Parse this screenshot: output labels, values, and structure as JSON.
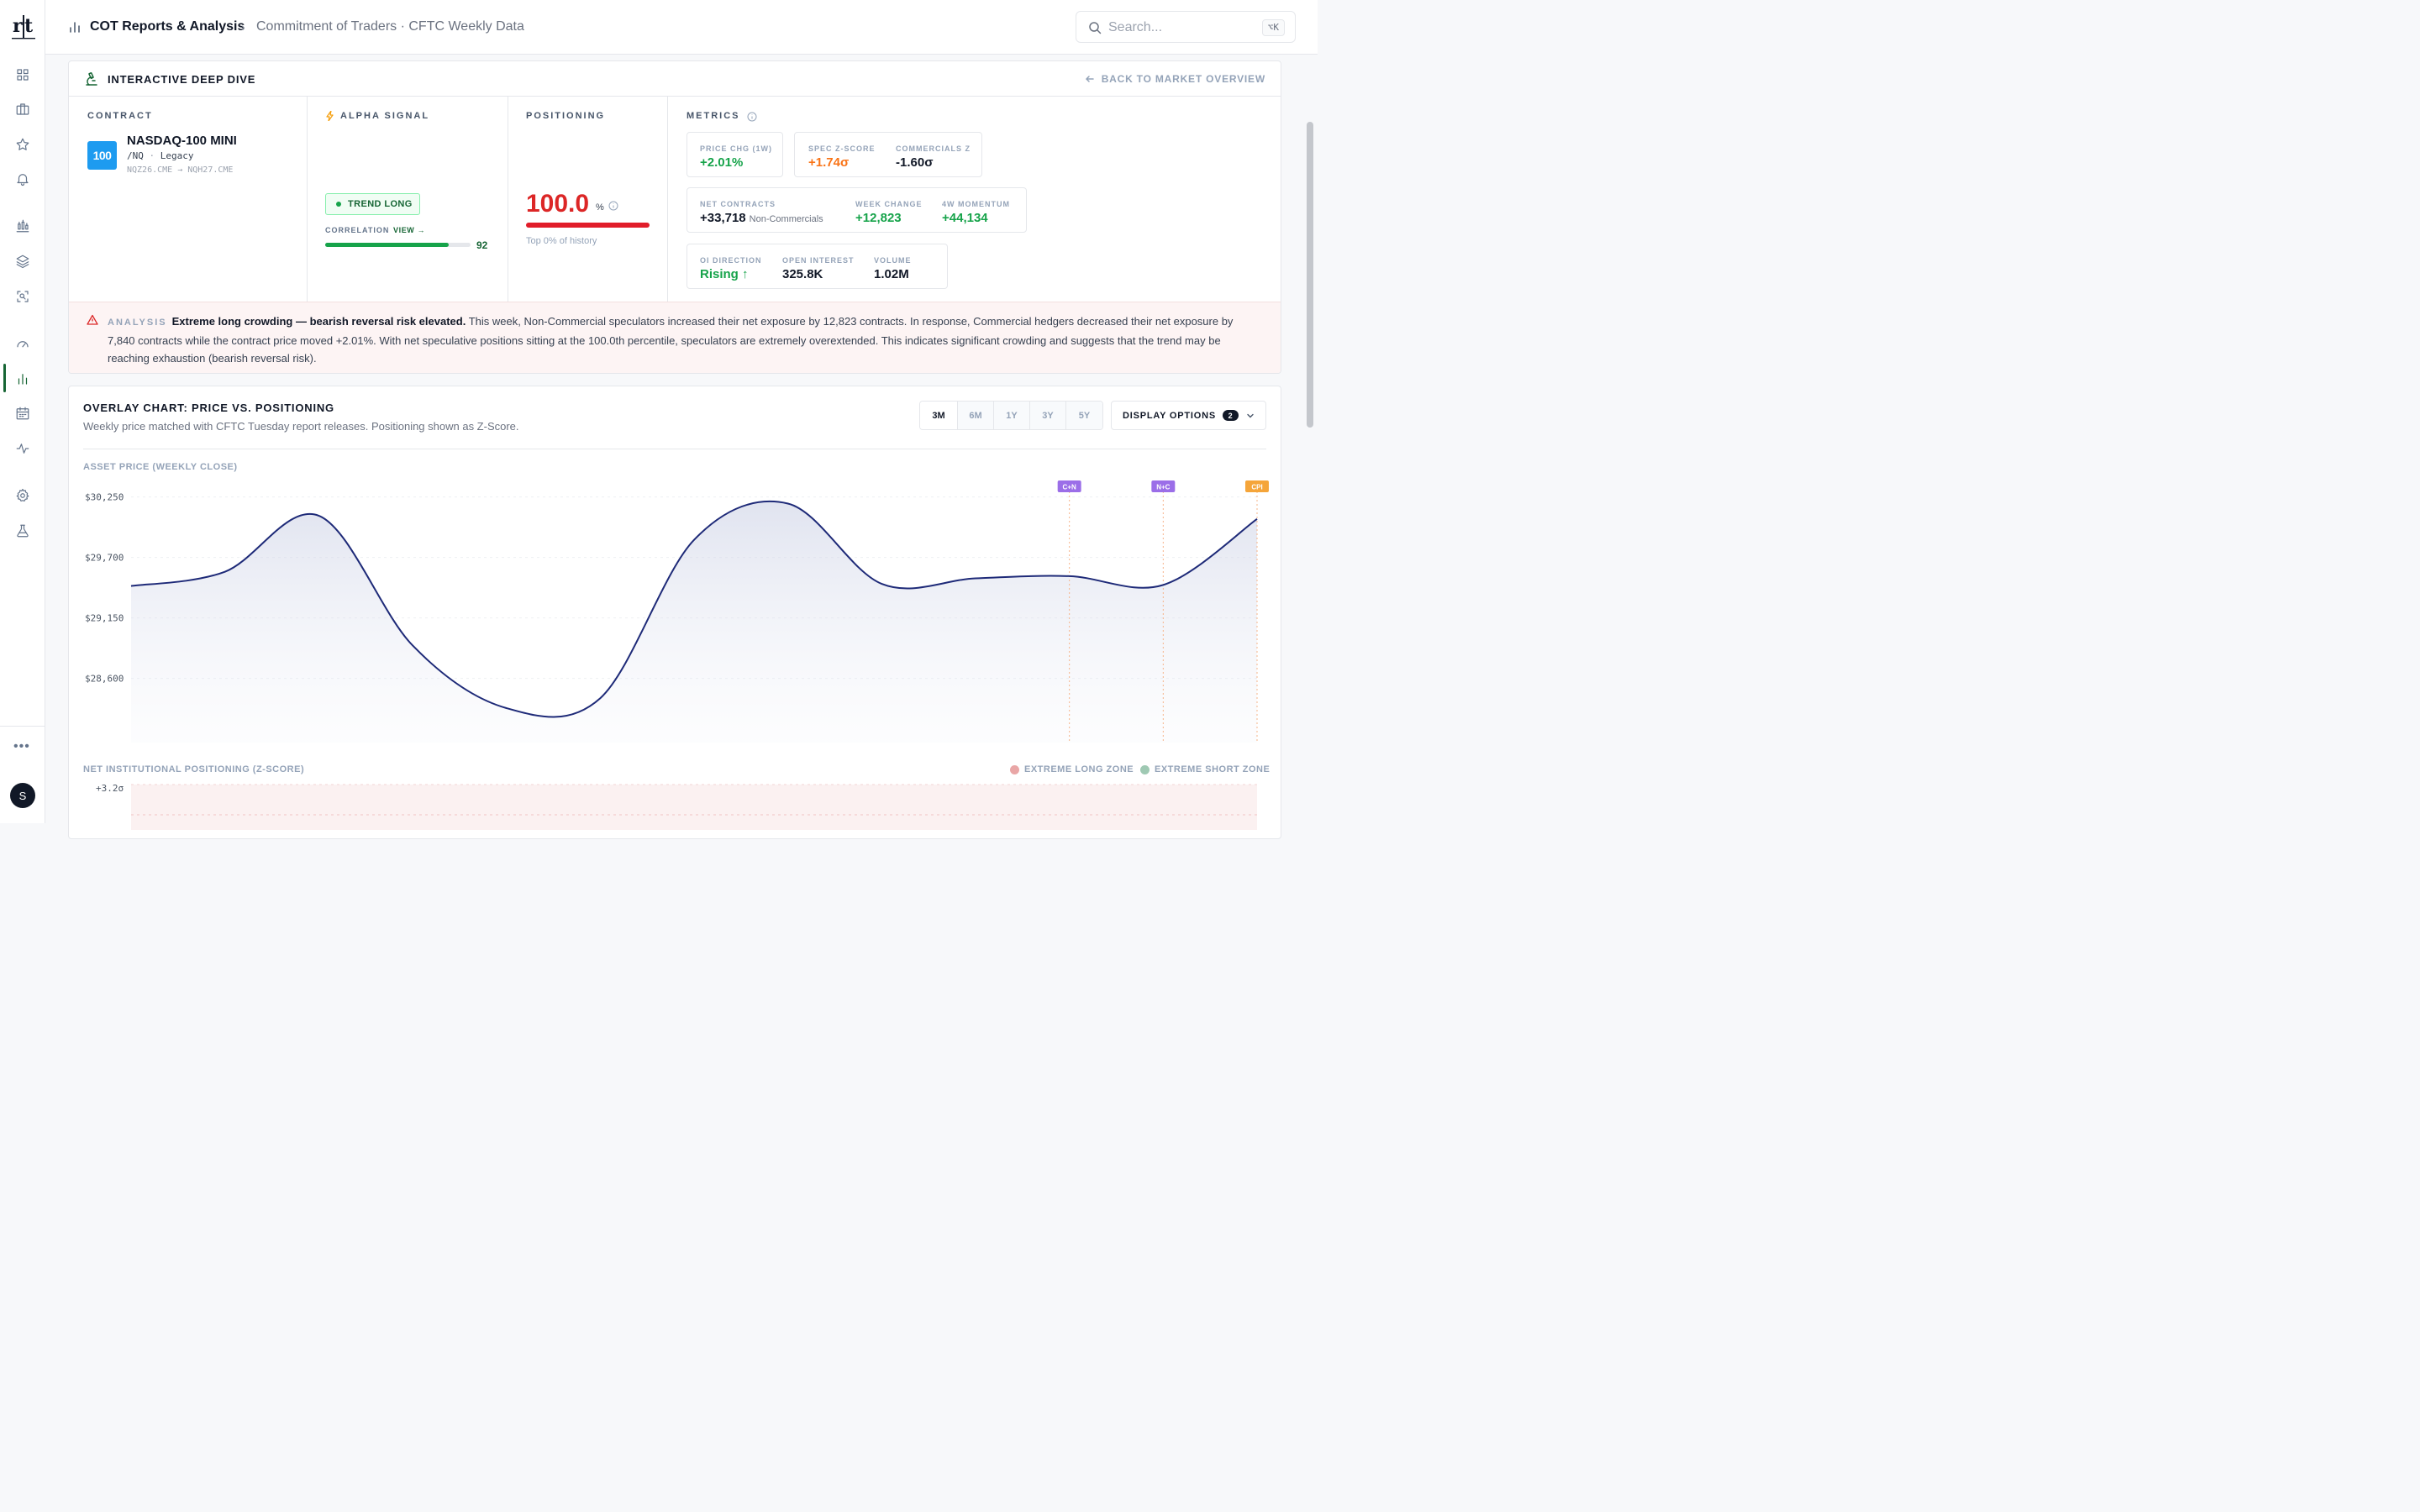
{
  "topbar": {
    "title": "COT Reports & Analysis",
    "subtitle": "Commitment of Traders · CFTC Weekly Data",
    "search_placeholder": "Search...",
    "shortcut": "⌥K"
  },
  "sidebar": {
    "logo_text": "r|t",
    "icons": [
      "dashboard-icon",
      "briefcase-icon",
      "star-icon",
      "bell-icon",
      "candles-icon",
      "layers-icon",
      "scan-icon",
      "gauge-icon",
      "bar-chart-icon",
      "calendar-icon",
      "pulse-icon",
      "settings-icon",
      "flask-icon"
    ],
    "active": "bar-chart-icon",
    "more": "•••",
    "avatar": "S"
  },
  "deep_dive": {
    "title": "INTERACTIVE DEEP DIVE",
    "back": "BACK TO MARKET OVERVIEW",
    "contract": {
      "label": "CONTRACT",
      "logo": "100",
      "name": "NASDAQ-100 MINI",
      "symbol": "/NQ",
      "type": "Legacy",
      "codes": "NQZ26.CME → NQH27.CME"
    },
    "alpha": {
      "label": "ALPHA SIGNAL",
      "signal": "TREND LONG",
      "correlation_label": "CORRELATION",
      "view_label": "VIEW →",
      "correlation_value": "92",
      "correlation_fraction": 0.92
    },
    "positioning": {
      "label": "POSITIONING",
      "value": "100.0",
      "unit": "%",
      "note": "Top 0% of history",
      "fraction": 1.0
    },
    "metrics": {
      "label": "METRICS",
      "price_chg_label": "PRICE CHG (1W)",
      "price_chg": "+2.01%",
      "spec_z_label": "SPEC Z-SCORE",
      "spec_z": "+1.74σ",
      "comm_z_label": "COMMERCIALS Z",
      "comm_z": "-1.60σ",
      "net_label": "NET CONTRACTS",
      "net": "+33,718",
      "net_sub": "Non-Commercials",
      "week_change_label": "WEEK CHANGE",
      "week_change": "+12,823",
      "momentum_label": "4W MOMENTUM",
      "momentum": "+44,134",
      "oi_dir_label": "OI DIRECTION",
      "oi_dir": "Rising ↑",
      "oi_label": "OPEN INTEREST",
      "oi": "325.8K",
      "volume_label": "VOLUME",
      "volume": "1.02M"
    },
    "analysis": {
      "label": "ANALYSIS",
      "headline": "Extreme long crowding — bearish reversal risk elevated.",
      "body": "This week, Non-Commercial speculators increased their net exposure by 12,823 contracts. In response, Commercial hedgers decreased their net exposure by 7,840 contracts while the contract price moved +2.01%. With net speculative positions sitting at the 100.0th percentile, speculators are extremely overextended. This indicates significant crowding and suggests that the trend may be reaching exhaustion (bearish reversal risk)."
    }
  },
  "overlay": {
    "title": "OVERLAY CHART: PRICE VS. POSITIONING",
    "subtitle": "Weekly price matched with CFTC Tuesday report releases. Positioning shown as Z-Score.",
    "timeframes": [
      "3M",
      "6M",
      "1Y",
      "3Y",
      "5Y"
    ],
    "active_timeframe": "3M",
    "display_options": "DISPLAY OPTIONS",
    "display_count": "2",
    "price_label": "ASSET PRICE (WEEKLY CLOSE)",
    "z_label": "NET INSTITUTIONAL POSITIONING (Z-SCORE)",
    "legend_long": "EXTREME LONG ZONE",
    "legend_short": "EXTREME SHORT ZONE",
    "colors": {
      "price_line": "#1e2a78",
      "long_zone": "#e9a6a6",
      "short_zone": "#9fc9b3",
      "cn": "#9b6ee8",
      "cpi": "#f5a53a"
    }
  },
  "chart_data": [
    {
      "type": "line",
      "title": "ASSET PRICE (WEEKLY CLOSE)",
      "y_ticks": [
        "$30,250",
        "$29,700",
        "$29,150",
        "$28,600"
      ],
      "ylim": [
        28200,
        30400
      ],
      "x": [
        0,
        1,
        2,
        3,
        4,
        5,
        6,
        7,
        8,
        9,
        10,
        11,
        12
      ],
      "series": [
        {
          "values": [
            29440,
            29570,
            30080,
            28900,
            28330,
            28420,
            29860,
            30190,
            29460,
            29510,
            29530,
            29450,
            30050
          ]
        }
      ],
      "annotations": [
        {
          "label": "C+N",
          "x": 10.0,
          "color": "#9b6ee8"
        },
        {
          "label": "N+C",
          "x": 11.0,
          "color": "#9b6ee8"
        },
        {
          "label": "CPI",
          "x": 12.0,
          "color": "#f5a53a"
        }
      ],
      "grid": true
    },
    {
      "type": "area",
      "title": "NET INSTITUTIONAL POSITIONING (Z-SCORE)",
      "y_ticks": [
        "+3.2σ"
      ],
      "legend": [
        "EXTREME LONG ZONE",
        "EXTREME SHORT ZONE"
      ],
      "legend_position": "top-right"
    }
  ]
}
